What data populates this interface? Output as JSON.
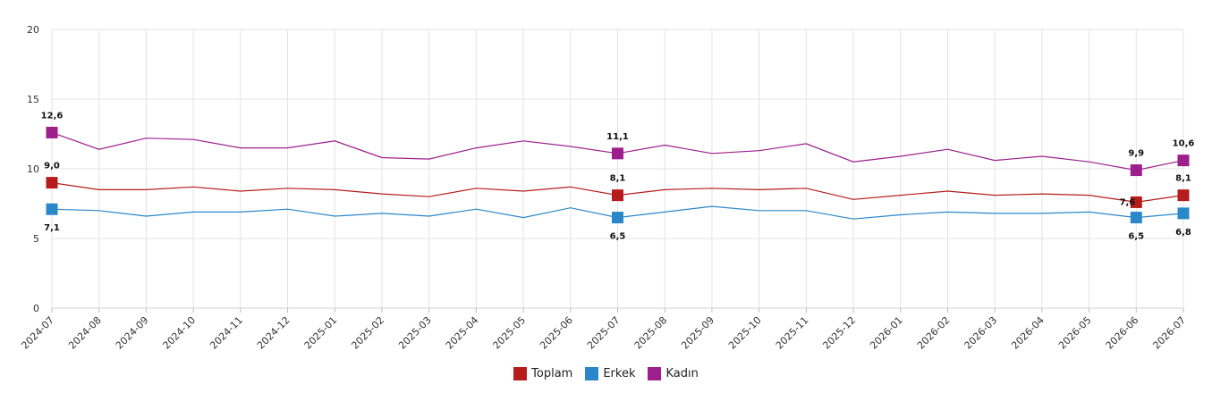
{
  "chart_data": {
    "type": "line",
    "categories": [
      "2024-07",
      "2024-08",
      "2024-09",
      "2024-10",
      "2024-11",
      "2024-12",
      "2025-01",
      "2025-02",
      "2025-03",
      "2025-04",
      "2025-05",
      "2025-06",
      "2025-07",
      "2025-08",
      "2025-09",
      "2025-10",
      "2025-11",
      "2025-12",
      "2026-01",
      "2026-02",
      "2026-03",
      "2026-04",
      "2026-05",
      "2026-06",
      "2026-07"
    ],
    "ylim": [
      0,
      20
    ],
    "yticks": [
      "0",
      "5",
      "10",
      "15",
      "20"
    ],
    "grid": true,
    "legend_position": "bottom-center",
    "series": [
      {
        "name": "Toplam",
        "color": "#b71c1c",
        "values": [
          9.0,
          8.5,
          8.5,
          8.7,
          8.4,
          8.6,
          8.5,
          8.2,
          8.0,
          8.6,
          8.4,
          8.7,
          8.1,
          8.5,
          8.6,
          8.5,
          8.6,
          7.8,
          8.1,
          8.4,
          8.1,
          8.2,
          8.1,
          7.6,
          8.1
        ]
      },
      {
        "name": "Erkek",
        "color": "#2a87c8",
        "values": [
          7.1,
          7.0,
          6.6,
          6.9,
          6.9,
          7.1,
          6.6,
          6.8,
          6.6,
          7.1,
          6.5,
          7.2,
          6.5,
          6.9,
          7.3,
          7.0,
          7.0,
          6.4,
          6.7,
          6.9,
          6.8,
          6.8,
          6.9,
          6.5,
          6.8
        ]
      },
      {
        "name": "Kadın",
        "color": "#9c1f8c",
        "values": [
          12.6,
          11.4,
          12.2,
          12.1,
          11.5,
          11.5,
          12.0,
          10.8,
          10.7,
          11.5,
          12.0,
          11.6,
          11.1,
          11.7,
          11.1,
          11.3,
          11.8,
          10.5,
          10.9,
          11.4,
          10.6,
          10.9,
          10.5,
          9.9,
          10.6
        ]
      }
    ],
    "data_labels": [
      {
        "series": 0,
        "index": 0,
        "text": "9,0",
        "pos": "above"
      },
      {
        "series": 1,
        "index": 0,
        "text": "7,1",
        "pos": "below"
      },
      {
        "series": 2,
        "index": 0,
        "text": "12,6",
        "pos": "above"
      },
      {
        "series": 0,
        "index": 12,
        "text": "8,1",
        "pos": "above"
      },
      {
        "series": 1,
        "index": 12,
        "text": "6,5",
        "pos": "below"
      },
      {
        "series": 2,
        "index": 12,
        "text": "11,1",
        "pos": "above"
      },
      {
        "series": 0,
        "index": 23,
        "text": "7,6",
        "pos": "left"
      },
      {
        "series": 1,
        "index": 23,
        "text": "6,5",
        "pos": "below"
      },
      {
        "series": 2,
        "index": 23,
        "text": "9,9",
        "pos": "above"
      },
      {
        "series": 0,
        "index": 24,
        "text": "8,1",
        "pos": "above"
      },
      {
        "series": 1,
        "index": 24,
        "text": "6,8",
        "pos": "below"
      },
      {
        "series": 2,
        "index": 24,
        "text": "10,6",
        "pos": "above"
      }
    ],
    "marker_points": [
      0,
      12,
      23,
      24
    ]
  },
  "legend": {
    "items": [
      {
        "label": "Toplam",
        "color": "#b71c1c"
      },
      {
        "label": "Erkek",
        "color": "#2a87c8"
      },
      {
        "label": "Kadın",
        "color": "#9c1f8c"
      }
    ]
  }
}
